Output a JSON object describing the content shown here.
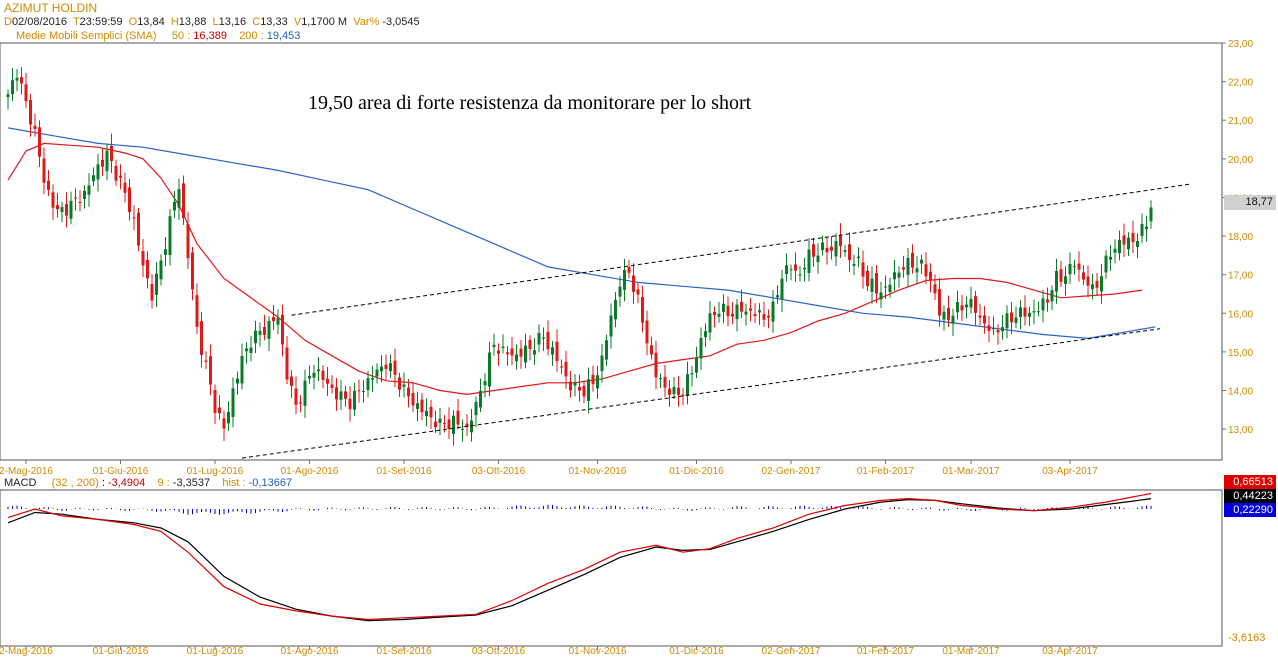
{
  "header": {
    "title": "AZIMUT HOLDIN",
    "d_label": "D",
    "date": "02/08/2016",
    "t_label": "T",
    "time": "23:59:59",
    "o_label": "O",
    "open": "13,84",
    "h_label": "H",
    "high": "13,88",
    "l_label": "L",
    "low": "13,16",
    "c_label": "C",
    "close": "13,33",
    "v_label": "V",
    "volume": "1,1700 M",
    "var_label": "Var%",
    "var": "-3,0545"
  },
  "sma": {
    "label": "Medie Mobili Semplici (SMA)",
    "p50_label": "50 :",
    "p50_value": "16,389",
    "p200_label": "200 :",
    "p200_value": "19,453"
  },
  "macd": {
    "label": "MACD",
    "params": "(32 , 200)",
    "value": "-3,4904",
    "signal_label": "9 :",
    "signal_value": "-3,3537",
    "hist_label": "hist :",
    "hist_value": "-0,13667",
    "tag_red": "0,66513",
    "tag_black": "0,44223",
    "tag_blue": "0,22290",
    "bottom_label": "-3,6163"
  },
  "annotation": "19,50 area di forte resistenza da monitorare per lo short",
  "last_price_tag": "18,77",
  "colors": {
    "bull": "#0a7a2a",
    "bear": "#e01818",
    "sma50": "#e01818",
    "sma200": "#2a62c8",
    "axis_text": "#d08a00"
  },
  "chart_data": {
    "type": "candlestick",
    "price_ylim": [
      12.2,
      23.0
    ],
    "price_ticks": [
      "23,00",
      "22,00",
      "21,00",
      "20,00",
      "19,00",
      "18,00",
      "17,00",
      "16,00",
      "15,00",
      "14,00",
      "13,00"
    ],
    "x_ticks": [
      "2-Mag-2016",
      "01-Giu-2016",
      "01-Lug-2016",
      "01-Ago-2016",
      "01-Set-2016",
      "03-Ott-2016",
      "01-Nov-2016",
      "01-Dic-2016",
      "02-Gen-2017",
      "01-Feb-2017",
      "01-Mar-2017",
      "03-Apr-2017"
    ],
    "close_path": [
      [
        0,
        21.6
      ],
      [
        2,
        22.3
      ],
      [
        4,
        21.4
      ],
      [
        6,
        20.7
      ],
      [
        8,
        19.4
      ],
      [
        11,
        18.6
      ],
      [
        14,
        18.8
      ],
      [
        17,
        19.1
      ],
      [
        20,
        19.8
      ],
      [
        22,
        20.1
      ],
      [
        25,
        19.4
      ],
      [
        28,
        18.4
      ],
      [
        30,
        17.2
      ],
      [
        32,
        16.5
      ],
      [
        34,
        17.3
      ],
      [
        36,
        18.4
      ],
      [
        38,
        19.3
      ],
      [
        40,
        17.5
      ],
      [
        42,
        15.6
      ],
      [
        44,
        14.6
      ],
      [
        46,
        13.6
      ],
      [
        48,
        13.0
      ],
      [
        50,
        14.0
      ],
      [
        52,
        14.8
      ],
      [
        54,
        15.3
      ],
      [
        57,
        15.6
      ],
      [
        60,
        15.9
      ],
      [
        62,
        14.4
      ],
      [
        64,
        13.6
      ],
      [
        66,
        14.1
      ],
      [
        68,
        14.6
      ],
      [
        70,
        14.3
      ],
      [
        73,
        13.9
      ],
      [
        76,
        13.7
      ],
      [
        79,
        14.1
      ],
      [
        82,
        14.5
      ],
      [
        84,
        14.7
      ],
      [
        86,
        14.4
      ],
      [
        88,
        14.0
      ],
      [
        90,
        13.7
      ],
      [
        93,
        13.4
      ],
      [
        96,
        13.1
      ],
      [
        99,
        13.2
      ],
      [
        102,
        13.0
      ],
      [
        104,
        13.6
      ],
      [
        106,
        14.4
      ],
      [
        108,
        15.2
      ],
      [
        110,
        15.0
      ],
      [
        113,
        14.9
      ],
      [
        116,
        15.1
      ],
      [
        119,
        15.4
      ],
      [
        121,
        15.0
      ],
      [
        123,
        14.6
      ],
      [
        125,
        14.1
      ],
      [
        128,
        14.0
      ],
      [
        130,
        14.2
      ],
      [
        132,
        14.8
      ],
      [
        134,
        15.9
      ],
      [
        136,
        16.8
      ],
      [
        138,
        17.1
      ],
      [
        140,
        16.3
      ],
      [
        142,
        15.3
      ],
      [
        144,
        14.4
      ],
      [
        146,
        14.1
      ],
      [
        148,
        13.9
      ],
      [
        150,
        14.0
      ],
      [
        152,
        14.5
      ],
      [
        154,
        15.3
      ],
      [
        156,
        15.9
      ],
      [
        158,
        16.1
      ],
      [
        160,
        16.0
      ],
      [
        163,
        16.1
      ],
      [
        166,
        16.0
      ],
      [
        168,
        15.9
      ],
      [
        170,
        16.1
      ],
      [
        172,
        17.0
      ],
      [
        174,
        17.2
      ],
      [
        176,
        17.0
      ],
      [
        178,
        17.5
      ],
      [
        180,
        17.6
      ],
      [
        183,
        17.7
      ],
      [
        185,
        17.8
      ],
      [
        187,
        17.4
      ],
      [
        189,
        17.3
      ],
      [
        191,
        16.8
      ],
      [
        193,
        16.6
      ],
      [
        195,
        16.6
      ],
      [
        197,
        17.0
      ],
      [
        199,
        17.2
      ],
      [
        201,
        17.3
      ],
      [
        203,
        17.2
      ],
      [
        205,
        16.9
      ],
      [
        207,
        16.0
      ],
      [
        209,
        15.9
      ],
      [
        211,
        16.1
      ],
      [
        213,
        16.3
      ],
      [
        215,
        16.1
      ],
      [
        217,
        15.7
      ],
      [
        219,
        15.5
      ],
      [
        221,
        15.7
      ],
      [
        223,
        15.9
      ],
      [
        225,
        16.0
      ],
      [
        227,
        16.0
      ],
      [
        229,
        16.1
      ],
      [
        231,
        16.4
      ],
      [
        233,
        16.9
      ],
      [
        235,
        17.0
      ],
      [
        237,
        17.3
      ],
      [
        239,
        16.9
      ],
      [
        241,
        16.6
      ],
      [
        243,
        17.0
      ],
      [
        245,
        17.6
      ],
      [
        247,
        17.8
      ],
      [
        249,
        17.9
      ],
      [
        251,
        17.9
      ],
      [
        253,
        18.4
      ],
      [
        254,
        18.77
      ]
    ],
    "sma50_path": [
      [
        0,
        19.45
      ],
      [
        4,
        20.2
      ],
      [
        8,
        20.4
      ],
      [
        14,
        20.35
      ],
      [
        20,
        20.3
      ],
      [
        26,
        20.15
      ],
      [
        30,
        20.0
      ],
      [
        34,
        19.5
      ],
      [
        38,
        18.8
      ],
      [
        42,
        17.8
      ],
      [
        48,
        16.9
      ],
      [
        54,
        16.4
      ],
      [
        60,
        15.9
      ],
      [
        66,
        15.3
      ],
      [
        72,
        14.9
      ],
      [
        78,
        14.5
      ],
      [
        84,
        14.25
      ],
      [
        90,
        14.2
      ],
      [
        96,
        14.0
      ],
      [
        102,
        13.9
      ],
      [
        108,
        14.0
      ],
      [
        114,
        14.1
      ],
      [
        120,
        14.2
      ],
      [
        126,
        14.2
      ],
      [
        132,
        14.3
      ],
      [
        138,
        14.5
      ],
      [
        144,
        14.7
      ],
      [
        150,
        14.8
      ],
      [
        156,
        14.9
      ],
      [
        162,
        15.2
      ],
      [
        168,
        15.3
      ],
      [
        174,
        15.5
      ],
      [
        180,
        15.8
      ],
      [
        186,
        16.0
      ],
      [
        192,
        16.3
      ],
      [
        198,
        16.6
      ],
      [
        204,
        16.85
      ],
      [
        210,
        16.9
      ],
      [
        216,
        16.9
      ],
      [
        222,
        16.8
      ],
      [
        228,
        16.6
      ],
      [
        234,
        16.4
      ],
      [
        240,
        16.45
      ],
      [
        246,
        16.5
      ],
      [
        252,
        16.6
      ]
    ],
    "sma200_path": [
      [
        0,
        20.8
      ],
      [
        10,
        20.6
      ],
      [
        20,
        20.4
      ],
      [
        30,
        20.3
      ],
      [
        40,
        20.1
      ],
      [
        50,
        19.9
      ],
      [
        60,
        19.7
      ],
      [
        70,
        19.45
      ],
      [
        80,
        19.2
      ],
      [
        90,
        18.7
      ],
      [
        100,
        18.2
      ],
      [
        110,
        17.7
      ],
      [
        120,
        17.2
      ],
      [
        130,
        17.0
      ],
      [
        140,
        16.8
      ],
      [
        150,
        16.7
      ],
      [
        160,
        16.6
      ],
      [
        170,
        16.4
      ],
      [
        180,
        16.2
      ],
      [
        190,
        16.0
      ],
      [
        200,
        15.9
      ],
      [
        210,
        15.75
      ],
      [
        220,
        15.6
      ],
      [
        230,
        15.45
      ],
      [
        240,
        15.35
      ],
      [
        250,
        15.55
      ],
      [
        255,
        15.65
      ]
    ],
    "trendlines": [
      {
        "from": [
          63,
          15.95
        ],
        "to": [
          263,
          19.35
        ]
      },
      {
        "from": [
          52,
          12.25
        ],
        "to": [
          256,
          15.6
        ]
      }
    ],
    "macd_line": [
      [
        0,
        0.1
      ],
      [
        6,
        0.35
      ],
      [
        12,
        0.15
      ],
      [
        20,
        0.05
      ],
      [
        28,
        -0.1
      ],
      [
        34,
        -0.3
      ],
      [
        40,
        -0.9
      ],
      [
        48,
        -1.9
      ],
      [
        56,
        -2.4
      ],
      [
        64,
        -2.6
      ],
      [
        72,
        -2.75
      ],
      [
        80,
        -2.85
      ],
      [
        88,
        -2.8
      ],
      [
        96,
        -2.75
      ],
      [
        104,
        -2.7
      ],
      [
        112,
        -2.3
      ],
      [
        120,
        -1.8
      ],
      [
        128,
        -1.4
      ],
      [
        136,
        -0.9
      ],
      [
        144,
        -0.7
      ],
      [
        150,
        -0.9
      ],
      [
        156,
        -0.8
      ],
      [
        162,
        -0.5
      ],
      [
        170,
        -0.2
      ],
      [
        178,
        0.2
      ],
      [
        186,
        0.45
      ],
      [
        194,
        0.6
      ],
      [
        200,
        0.65
      ],
      [
        206,
        0.6
      ],
      [
        212,
        0.45
      ],
      [
        220,
        0.35
      ],
      [
        228,
        0.3
      ],
      [
        236,
        0.4
      ],
      [
        244,
        0.55
      ],
      [
        250,
        0.7
      ],
      [
        254,
        0.8
      ]
    ],
    "signal_line": [
      [
        0,
        -0.05
      ],
      [
        6,
        0.25
      ],
      [
        12,
        0.2
      ],
      [
        20,
        0.05
      ],
      [
        28,
        -0.05
      ],
      [
        34,
        -0.2
      ],
      [
        40,
        -0.6
      ],
      [
        48,
        -1.6
      ],
      [
        56,
        -2.2
      ],
      [
        64,
        -2.55
      ],
      [
        72,
        -2.75
      ],
      [
        80,
        -2.88
      ],
      [
        88,
        -2.85
      ],
      [
        96,
        -2.78
      ],
      [
        104,
        -2.72
      ],
      [
        112,
        -2.45
      ],
      [
        120,
        -2.0
      ],
      [
        128,
        -1.55
      ],
      [
        136,
        -1.05
      ],
      [
        144,
        -0.75
      ],
      [
        150,
        -0.85
      ],
      [
        156,
        -0.82
      ],
      [
        162,
        -0.6
      ],
      [
        170,
        -0.3
      ],
      [
        178,
        0.05
      ],
      [
        186,
        0.35
      ],
      [
        194,
        0.55
      ],
      [
        200,
        0.62
      ],
      [
        206,
        0.6
      ],
      [
        212,
        0.5
      ],
      [
        220,
        0.38
      ],
      [
        228,
        0.3
      ],
      [
        236,
        0.35
      ],
      [
        244,
        0.48
      ],
      [
        250,
        0.58
      ],
      [
        254,
        0.65
      ]
    ],
    "macd_ylim": [
      -3.6163,
      0.9
    ]
  }
}
